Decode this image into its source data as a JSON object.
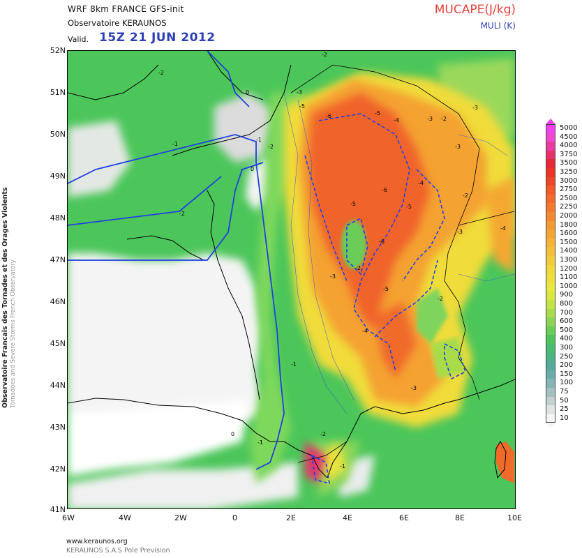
{
  "header": {
    "model_line": "WRF 8km FRANCE   GFS-init",
    "observatory": "Observatoire KERAUNOS",
    "valid_label": "Valid.",
    "valid_time": "15Z 21 JUN 2012",
    "field_title": "MUCAPE(J/kg)",
    "field_sub": "MULI (K)"
  },
  "side_text": {
    "line1": "Observatoire Francais des Tornades et des Orages Violents",
    "line2": "Tornadoes and Severe Storms French Observatory"
  },
  "map": {
    "lat_labels": [
      "52N",
      "51N",
      "50N",
      "49N",
      "48N",
      "47N",
      "46N",
      "45N",
      "44N",
      "43N",
      "42N",
      "41N"
    ],
    "lon_labels": [
      "6W",
      "4W",
      "2W",
      "0",
      "2E",
      "4E",
      "6E",
      "8E",
      "10E"
    ],
    "contour_labels": [
      "-2",
      "-2",
      "0",
      "-3",
      "-5",
      "-6",
      "-5",
      "-4",
      "-3",
      "-2",
      "-3",
      "-1",
      "-1",
      "-2",
      "0",
      "-2",
      "-3",
      "-6",
      "-4",
      "-5",
      "-6",
      "-5",
      "-2",
      "-3",
      "-4",
      "-5",
      "-2",
      "-3",
      "-4",
      "-1",
      "-2",
      "-3",
      "-2",
      "-1",
      "0",
      "-1"
    ],
    "colors": {
      "sea_land_low": "#ffffff",
      "light_grey": "#d6d6d6",
      "green": "#48c85a",
      "light_green": "#8ad65c",
      "yellow": "#f0e040",
      "orange": "#f4a030",
      "red_orange": "#f06a28",
      "blue_contour": "#2040e0",
      "coastline": "#000000"
    }
  },
  "colorbar": {
    "levels": [
      "5000",
      "4500",
      "4000",
      "3750",
      "3500",
      "3250",
      "3000",
      "2750",
      "2500",
      "2250",
      "2000",
      "1800",
      "1600",
      "1500",
      "1400",
      "1300",
      "1200",
      "1100",
      "1000",
      "900",
      "800",
      "700",
      "600",
      "500",
      "400",
      "300",
      "250",
      "200",
      "150",
      "100",
      "75",
      "50",
      "25",
      "10"
    ],
    "colors": [
      "#f040f0",
      "#f048d0",
      "#e83ca0",
      "#e8306c",
      "#e82838",
      "#ee3426",
      "#f04428",
      "#f25a2a",
      "#f46a2c",
      "#f47a2e",
      "#f48a30",
      "#f49a32",
      "#f4a634",
      "#f4b436",
      "#f4c038",
      "#f2cc38",
      "#f0d83a",
      "#eee03c",
      "#e8e83e",
      "#d8e840",
      "#c4e444",
      "#a8dc4c",
      "#8cd454",
      "#6ccc58",
      "#50c45c",
      "#48bc70",
      "#4cb484",
      "#56ac98",
      "#6aaca8",
      "#86b4b4",
      "#a4c0c0",
      "#c4d0d0",
      "#e0e4e4",
      "#f4f4f4"
    ]
  },
  "footer": {
    "url": "www.keraunos.org",
    "company": "KERAUNOS S.A.S Pole Prevision"
  }
}
